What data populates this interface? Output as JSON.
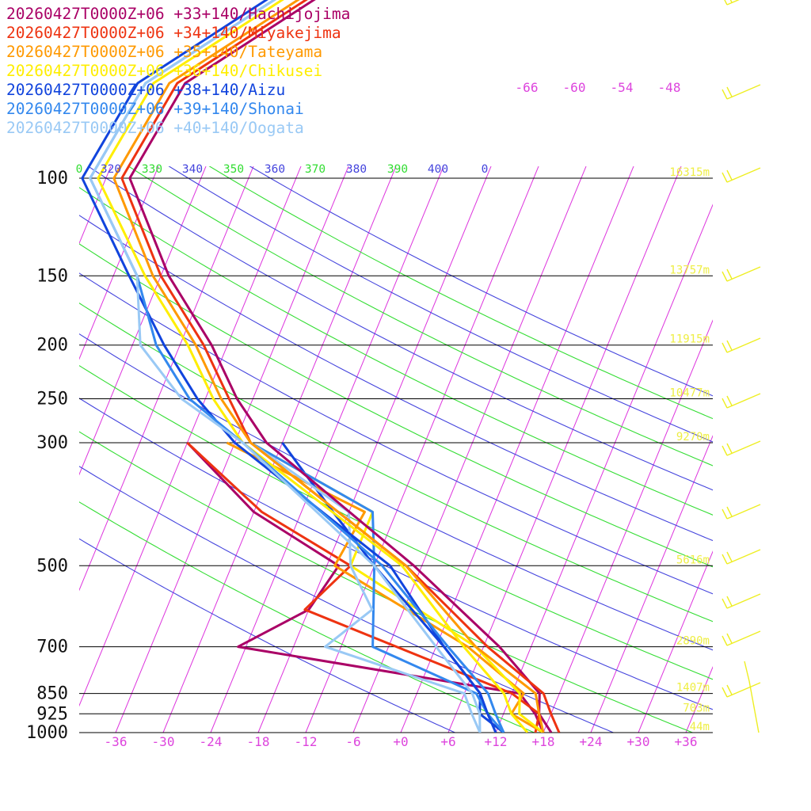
{
  "chart_data": {
    "type": "skew-t",
    "pressure_levels": [
      100,
      150,
      200,
      250,
      300,
      500,
      700,
      850,
      925,
      1000
    ],
    "x_axis_temperature_ticks": [
      "-36",
      "-30",
      "-24",
      "-18",
      "-12",
      "-6",
      "+0",
      "+6",
      "+12",
      "+18",
      "+24",
      "+30",
      "+36"
    ],
    "upper_temperature_labels": [
      "-60",
      "-54",
      "-48"
    ],
    "theta_labels": [
      "320",
      "330",
      "340",
      "350",
      "360",
      "370",
      "380",
      "390",
      "400"
    ],
    "theta_cut_labels": [
      "0",
      "0"
    ],
    "height_labels": [
      {
        "pressure": 100,
        "text": "16315m"
      },
      {
        "pressure": 150,
        "text": "13757m"
      },
      {
        "pressure": 200,
        "text": "11915m"
      },
      {
        "pressure": 250,
        "text": "10477m"
      },
      {
        "pressure": 300,
        "text": "9270m"
      },
      {
        "pressure": 500,
        "text": "5616m"
      },
      {
        "pressure": 700,
        "text": "2890m"
      },
      {
        "pressure": 850,
        "text": "1407m"
      },
      {
        "pressure": 925,
        "text": "703m"
      },
      {
        "pressure": 1000,
        "text": "44m"
      }
    ],
    "series": [
      {
        "name": "20260427T0000Z+06 +33+140/Hachijojima",
        "color": "#aa0066",
        "temperature": [
          [
            1000,
            19
          ],
          [
            925,
            16.5
          ],
          [
            850,
            15.5
          ],
          [
            700,
            8
          ],
          [
            500,
            -7
          ],
          [
            300,
            -32
          ],
          [
            250,
            -38
          ],
          [
            200,
            -44
          ],
          [
            150,
            -53
          ],
          [
            100,
            -63
          ]
        ],
        "dewpoint": [
          [
            1000,
            18
          ],
          [
            925,
            16
          ],
          [
            850,
            13
          ],
          [
            700,
            -25
          ],
          [
            600,
            -18
          ],
          [
            500,
            -16.5
          ],
          [
            400,
            -30
          ],
          [
            300,
            -42
          ]
        ]
      },
      {
        "name": "20260427T0000Z+06 +34+140/Miyakejima",
        "color": "#ee3311",
        "temperature": [
          [
            1000,
            20
          ],
          [
            925,
            18
          ],
          [
            850,
            16
          ],
          [
            700,
            6.5
          ],
          [
            500,
            -8
          ],
          [
            300,
            -34
          ],
          [
            250,
            -39
          ],
          [
            200,
            -45
          ],
          [
            150,
            -54
          ],
          [
            100,
            -64
          ]
        ],
        "dewpoint": [
          [
            1000,
            17
          ],
          [
            925,
            16.5
          ],
          [
            850,
            12
          ],
          [
            600,
            -18.5
          ],
          [
            500,
            -15
          ],
          [
            400,
            -29
          ],
          [
            300,
            -42
          ]
        ]
      },
      {
        "name": "20260427T0000Z+06 +35+140/Tateyama",
        "color": "#ff9900",
        "temperature": [
          [
            1000,
            18
          ],
          [
            925,
            16.5
          ],
          [
            850,
            15
          ],
          [
            700,
            5
          ],
          [
            500,
            -8
          ],
          [
            300,
            -34
          ],
          [
            250,
            -40
          ],
          [
            200,
            -46
          ],
          [
            150,
            -55
          ],
          [
            100,
            -65
          ]
        ],
        "dewpoint": [
          [
            1000,
            18
          ],
          [
            925,
            13
          ],
          [
            850,
            13.5
          ],
          [
            700,
            4
          ],
          [
            500,
            -17
          ],
          [
            400,
            -16
          ],
          [
            300,
            -37
          ]
        ]
      },
      {
        "name": "20260427T0000Z+06 +36+140/Chikusei",
        "color": "#ffee00",
        "temperature": [
          [
            1000,
            16
          ],
          [
            925,
            13
          ],
          [
            850,
            11
          ],
          [
            700,
            3.5
          ],
          [
            500,
            -8.5
          ],
          [
            300,
            -35
          ],
          [
            250,
            -41
          ],
          [
            200,
            -47
          ],
          [
            150,
            -56
          ],
          [
            100,
            -67
          ]
        ],
        "dewpoint": [
          [
            1000,
            18
          ],
          [
            925,
            14
          ],
          [
            850,
            13
          ],
          [
            700,
            5
          ],
          [
            500,
            -15
          ],
          [
            400,
            -15
          ],
          [
            300,
            -34
          ]
        ]
      },
      {
        "name": "20260427T0000Z+06 +38+140/Aizu",
        "color": "#1144dd",
        "temperature": [
          [
            1000,
            12
          ],
          [
            925,
            10
          ],
          [
            850,
            8
          ],
          [
            700,
            1
          ],
          [
            500,
            -10
          ],
          [
            300,
            -36
          ],
          [
            250,
            -43
          ],
          [
            200,
            -50
          ],
          [
            150,
            -58
          ],
          [
            100,
            -69
          ]
        ],
        "dewpoint": [
          [
            1000,
            13
          ],
          [
            925,
            9
          ],
          [
            850,
            8
          ],
          [
            700,
            1
          ],
          [
            500,
            -12
          ],
          [
            400,
            -20
          ],
          [
            300,
            -30
          ]
        ]
      },
      {
        "name": "20260427T0000Z+06 +39+140/Shonai",
        "color": "#3388ee",
        "temperature": [
          [
            1000,
            13
          ],
          [
            925,
            11
          ],
          [
            850,
            9
          ],
          [
            700,
            1.5
          ],
          [
            500,
            -11
          ],
          [
            300,
            -35
          ],
          [
            250,
            -44
          ],
          [
            200,
            -51
          ],
          [
            150,
            -57
          ],
          [
            100,
            -68
          ]
        ],
        "dewpoint": [
          [
            1000,
            13
          ],
          [
            925,
            10
          ],
          [
            850,
            7.5
          ],
          [
            700,
            -8
          ],
          [
            500,
            -12
          ],
          [
            400,
            -15
          ],
          [
            300,
            -34
          ]
        ]
      },
      {
        "name": "20260427T0000Z+06 +40+140/Oogata",
        "color": "#99c9f5",
        "temperature": [
          [
            1000,
            10
          ],
          [
            925,
            9
          ],
          [
            850,
            7
          ],
          [
            700,
            0
          ],
          [
            500,
            -12
          ],
          [
            300,
            -35
          ],
          [
            250,
            -45
          ],
          [
            200,
            -53
          ],
          [
            150,
            -57
          ],
          [
            100,
            -68
          ]
        ],
        "dewpoint": [
          [
            1000,
            10
          ],
          [
            925,
            8
          ],
          [
            850,
            6
          ],
          [
            700,
            -14
          ],
          [
            600,
            -10
          ],
          [
            500,
            -15
          ],
          [
            400,
            -18
          ],
          [
            300,
            -34
          ]
        ]
      }
    ]
  }
}
